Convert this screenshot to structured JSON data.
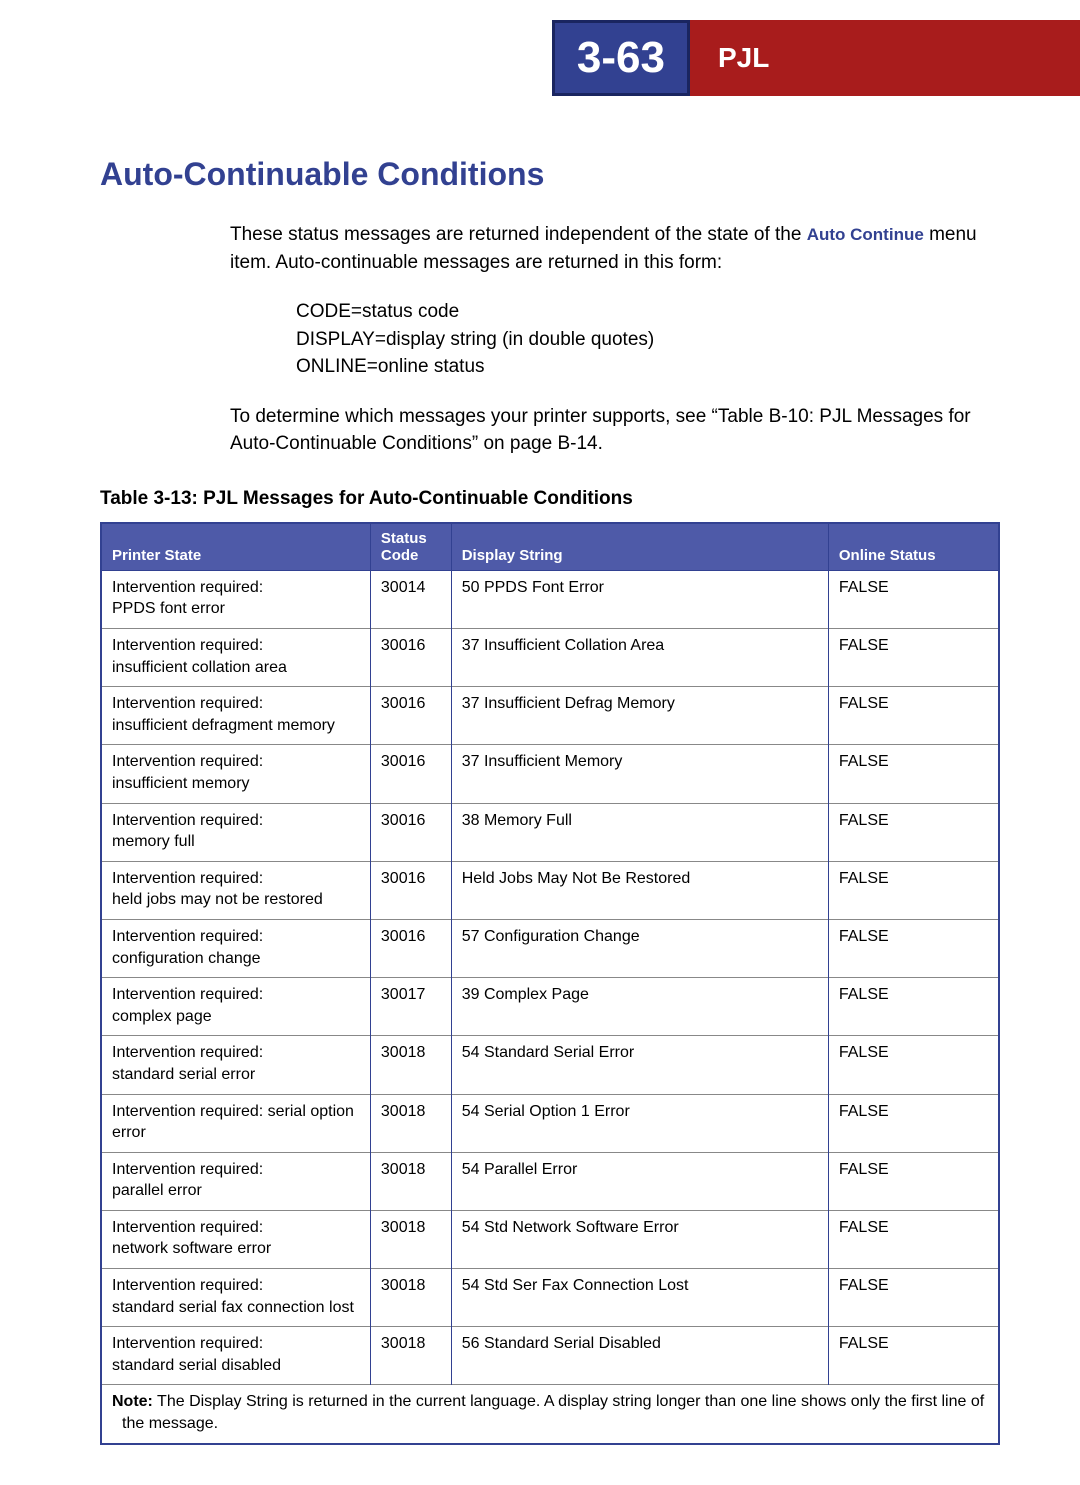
{
  "header": {
    "page_number": "3-63",
    "section_label": "PJL",
    "page_num_bg": "#324191",
    "section_bg": "#a81c1c"
  },
  "title": "Auto-Continuable Conditions",
  "intro": {
    "para1_prefix": "These status messages are returned independent of the state of the ",
    "auto_continue_link": "Auto Continue",
    "para1_suffix": " menu item. Auto-continuable messages are returned in this form:",
    "code_lines": {
      "l1": "CODE=status code",
      "l2": "DISPLAY=display string (in double quotes)",
      "l3": "ONLINE=online status"
    },
    "para2": "To determine which messages your printer supports, see “Table B-10: PJL Messages for Auto-Continuable Conditions” on page B-14."
  },
  "table": {
    "caption": "Table 3-13:  PJL Messages for Auto-Continuable Conditions",
    "header_bg": "#4e5aa8",
    "border_color": "#324191",
    "columns": {
      "printer_state": "Printer State",
      "status_code": "Status Code",
      "display_string": "Display String",
      "online_status": "Online Status"
    },
    "rows": [
      {
        "printer_state": "Intervention required:\nPPDS font error",
        "status_code": "30014",
        "display_string": "50 PPDS Font Error",
        "online_status": "FALSE"
      },
      {
        "printer_state": "Intervention required:\ninsufficient collation area",
        "status_code": "30016",
        "display_string": "37 Insufficient Collation Area",
        "online_status": "FALSE"
      },
      {
        "printer_state": "Intervention required:\ninsufficient defragment memory",
        "status_code": "30016",
        "display_string": "37 Insufficient Defrag Memory",
        "online_status": "FALSE"
      },
      {
        "printer_state": "Intervention required:\ninsufficient memory",
        "status_code": "30016",
        "display_string": "37 Insufficient Memory",
        "online_status": "FALSE"
      },
      {
        "printer_state": "Intervention required:\nmemory full",
        "status_code": "30016",
        "display_string": "38 Memory Full",
        "online_status": "FALSE"
      },
      {
        "printer_state": "Intervention required:\nheld jobs may not be restored",
        "status_code": "30016",
        "display_string": "Held Jobs May Not Be Restored",
        "online_status": "FALSE"
      },
      {
        "printer_state": "Intervention required:\nconfiguration change",
        "status_code": "30016",
        "display_string": "57 Configuration Change",
        "online_status": "FALSE"
      },
      {
        "printer_state": "Intervention required:\ncomplex page",
        "status_code": "30017",
        "display_string": "39 Complex Page",
        "online_status": "FALSE"
      },
      {
        "printer_state": "Intervention required:\nstandard serial error",
        "status_code": "30018",
        "display_string": "54 Standard Serial Error",
        "online_status": "FALSE"
      },
      {
        "printer_state": "Intervention required: serial option error",
        "status_code": "30018",
        "display_string": "54 Serial Option 1 Error",
        "online_status": "FALSE"
      },
      {
        "printer_state": "Intervention required:\nparallel error",
        "status_code": "30018",
        "display_string": "54 Parallel Error",
        "online_status": "FALSE"
      },
      {
        "printer_state": "Intervention required:\nnetwork software error",
        "status_code": "30018",
        "display_string": "54 Std Network Software Error",
        "online_status": "FALSE"
      },
      {
        "printer_state": "Intervention required:\nstandard serial fax connection lost",
        "status_code": "30018",
        "display_string": "54 Std Ser Fax Connection Lost",
        "online_status": "FALSE"
      },
      {
        "printer_state": "Intervention required:\nstandard serial disabled",
        "status_code": "30018",
        "display_string": "56 Standard Serial Disabled",
        "online_status": "FALSE"
      }
    ],
    "note": {
      "label": "Note:",
      "text_line1": " The Display String is returned in the current language. A display string longer than one line shows only the first line of",
      "text_line2": "the message."
    }
  }
}
